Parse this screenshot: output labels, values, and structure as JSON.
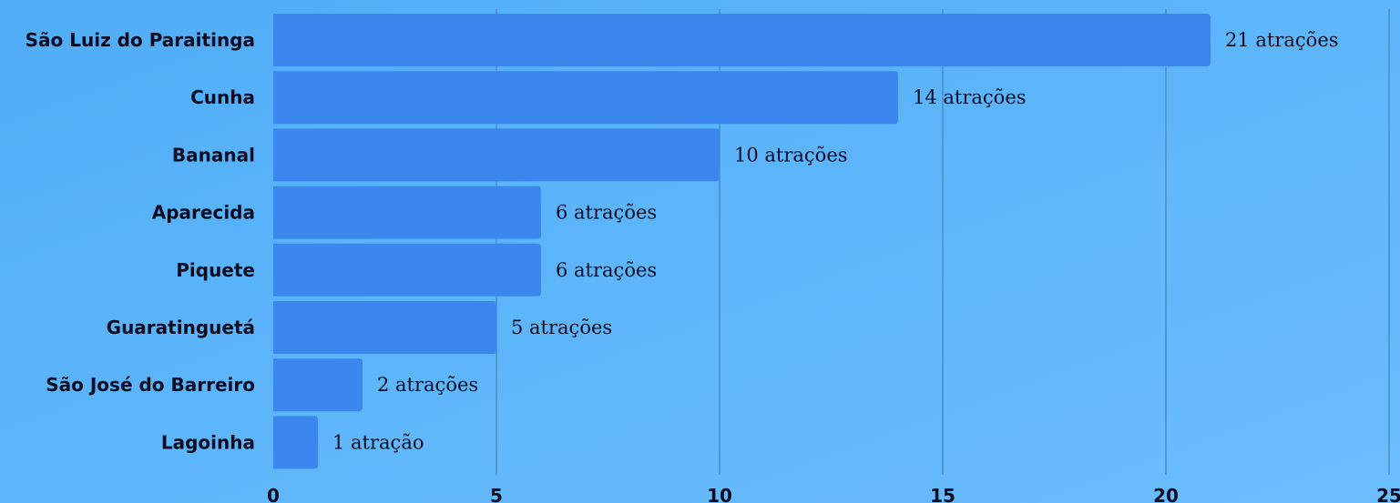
{
  "chart_data": {
    "type": "bar",
    "orientation": "horizontal",
    "categories": [
      "São Luiz do Paraitinga",
      "Cunha",
      "Bananal",
      "Aparecida",
      "Piquete",
      "Guaratinguetá",
      "São José do Barreiro",
      "Lagoinha"
    ],
    "values": [
      21,
      14,
      10,
      6,
      6,
      5,
      2,
      1
    ],
    "data_labels": [
      "21 atrações",
      "14 atrações",
      "10 atrações",
      "6 atrações",
      "6 atrações",
      "5 atrações",
      "2 atrações",
      "1 atração"
    ],
    "x_ticks": [
      "0",
      "5",
      "10",
      "15",
      "20",
      "25"
    ],
    "xlim": [
      0,
      25
    ],
    "grid": true,
    "legend": "none",
    "colors": {
      "bar": "#3a88ee",
      "grid": "#4a8dc2",
      "text": "#0c0c20"
    }
  }
}
